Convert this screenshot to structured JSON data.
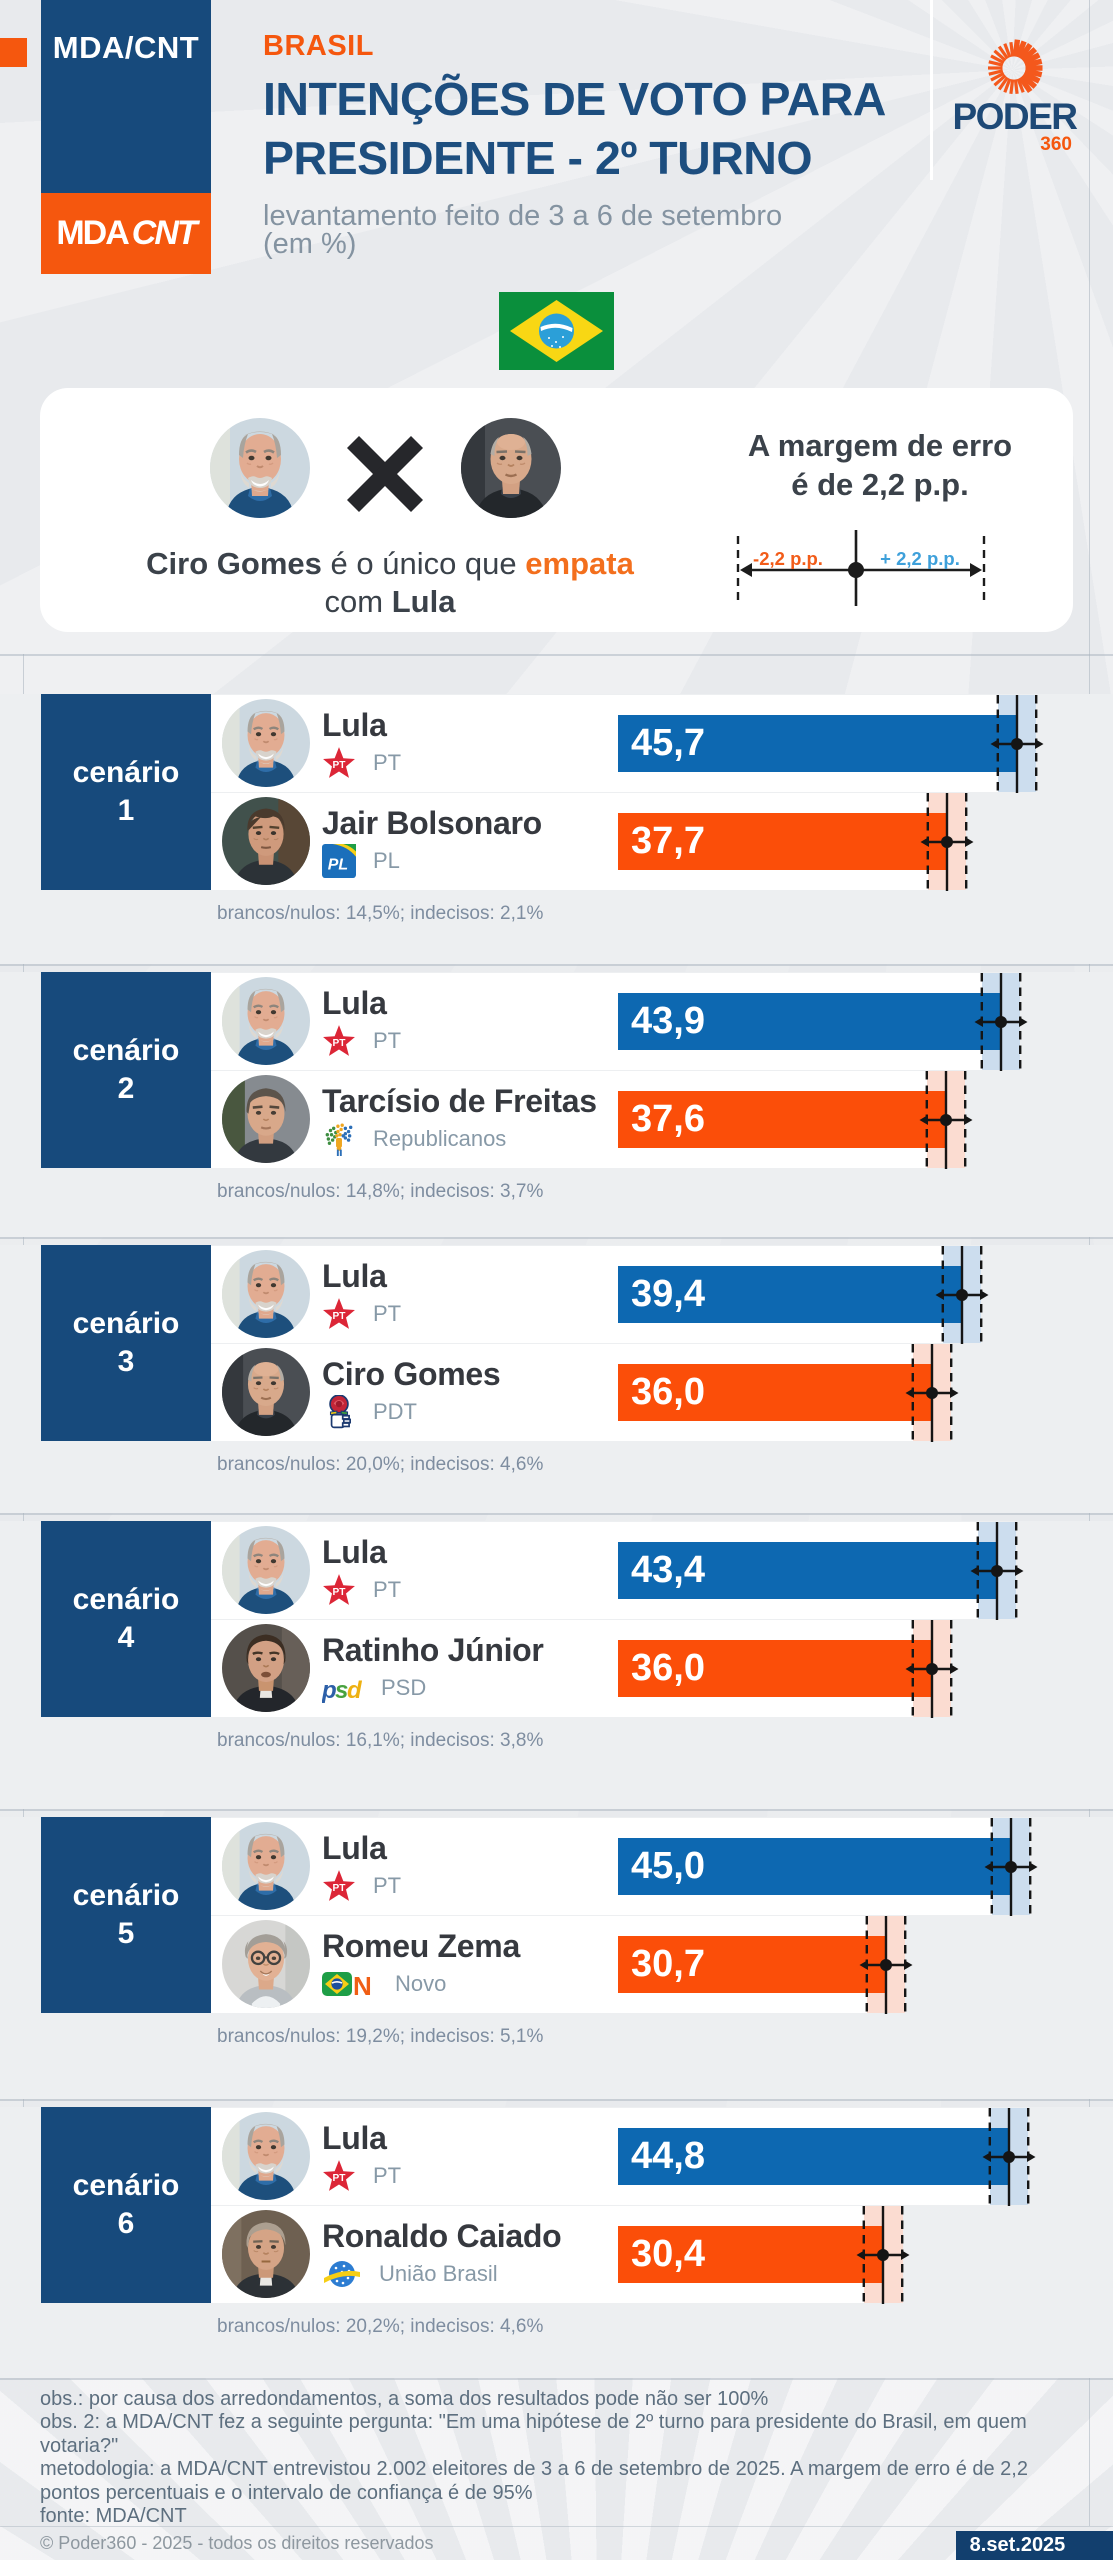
{
  "header": {
    "badge_label": "MDA/CNT",
    "badge_logo_mda": "MDA",
    "badge_logo_cnt": "CNT",
    "kicker": "BRASIL",
    "title_line1": "INTENÇÕES DE VOTO PARA",
    "title_line2": "PRESIDENTE - 2º TURNO",
    "subtitle": "levantamento feito de 3 a 6 de setembro",
    "unit": "(em %)",
    "logo_word": "PODER",
    "logo_suffix": "360"
  },
  "highlight_card": {
    "caption_bold1": "Ciro Gomes",
    "caption_mid": " é o único que ",
    "caption_accent": "empata",
    "caption_line2_pre": "com ",
    "caption_line2_bold": "Lula",
    "margin_title_line1": "A margem de erro",
    "margin_title_line2": "é de 2,2 p.p.",
    "minus_label": "-2,2 p.p.",
    "plus_label": "+ 2,2 p.p."
  },
  "chart_data": {
    "type": "bar",
    "unit": "%",
    "margin_of_error_pp": 2.2,
    "x_axis": {
      "min": 0,
      "max": 50
    },
    "scenarios": [
      {
        "label_line1": "cenário",
        "label_line2": "1",
        "rows": [
          {
            "name": "Lula",
            "party": "PT",
            "party_icon": "pt-star-icon",
            "avatar": "avatar-lula",
            "value": 45.7,
            "value_label": "45,7",
            "color_key": "blue"
          },
          {
            "name": "Jair Bolsonaro",
            "party": "PL",
            "party_icon": "pl-icon",
            "avatar": "avatar-bolsonaro",
            "value": 37.7,
            "value_label": "37,7",
            "color_key": "orange"
          }
        ],
        "note": "brancos/nulos: 14,5%; indecisos: 2,1%"
      },
      {
        "label_line1": "cenário",
        "label_line2": "2",
        "rows": [
          {
            "name": "Lula",
            "party": "PT",
            "party_icon": "pt-star-icon",
            "avatar": "avatar-lula",
            "value": 43.9,
            "value_label": "43,9",
            "color_key": "blue"
          },
          {
            "name": "Tarcísio de Freitas",
            "party": "Republicanos",
            "party_icon": "republicanos-icon",
            "avatar": "avatar-tarcisio",
            "value": 37.6,
            "value_label": "37,6",
            "color_key": "orange"
          }
        ],
        "note": "brancos/nulos: 14,8%; indecisos: 3,7%"
      },
      {
        "label_line1": "cenário",
        "label_line2": "3",
        "rows": [
          {
            "name": "Lula",
            "party": "PT",
            "party_icon": "pt-star-icon",
            "avatar": "avatar-lula",
            "value": 39.4,
            "value_label": "39,4",
            "color_key": "blue"
          },
          {
            "name": "Ciro Gomes",
            "party": "PDT",
            "party_icon": "pdt-icon",
            "avatar": "avatar-ciro",
            "value": 36.0,
            "value_label": "36,0",
            "color_key": "orange"
          }
        ],
        "note": "brancos/nulos: 20,0%; indecisos: 4,6%"
      },
      {
        "label_line1": "cenário",
        "label_line2": "4",
        "rows": [
          {
            "name": "Lula",
            "party": "PT",
            "party_icon": "pt-star-icon",
            "avatar": "avatar-lula",
            "value": 43.4,
            "value_label": "43,4",
            "color_key": "blue"
          },
          {
            "name": "Ratinho Júnior",
            "party": "PSD",
            "party_icon": "psd-icon",
            "avatar": "avatar-ratinho",
            "value": 36.0,
            "value_label": "36,0",
            "color_key": "orange"
          }
        ],
        "note": "brancos/nulos: 16,1%; indecisos: 3,8%"
      },
      {
        "label_line1": "cenário",
        "label_line2": "5",
        "rows": [
          {
            "name": "Lula",
            "party": "PT",
            "party_icon": "pt-star-icon",
            "avatar": "avatar-lula",
            "value": 45.0,
            "value_label": "45,0",
            "color_key": "blue"
          },
          {
            "name": "Romeu Zema",
            "party": "Novo",
            "party_icon": "novo-icon",
            "avatar": "avatar-zema",
            "value": 30.7,
            "value_label": "30,7",
            "color_key": "orange"
          }
        ],
        "note": "brancos/nulos: 19,2%; indecisos: 5,1%"
      },
      {
        "label_line1": "cenário",
        "label_line2": "6",
        "rows": [
          {
            "name": "Lula",
            "party": "PT",
            "party_icon": "pt-star-icon",
            "avatar": "avatar-lula",
            "value": 44.8,
            "value_label": "44,8",
            "color_key": "blue"
          },
          {
            "name": "Ronaldo Caiado",
            "party": "União Brasil",
            "party_icon": "uniao-icon",
            "avatar": "avatar-caiado",
            "value": 30.4,
            "value_label": "30,4",
            "color_key": "orange"
          }
        ],
        "note": "brancos/nulos: 20,2%; indecisos: 4,6%"
      }
    ]
  },
  "footer": {
    "lines": [
      "obs.: por causa dos arredondamentos, a soma dos resultados pode não ser 100%",
      "obs. 2: a MDA/CNT fez a seguinte pergunta: \"Em uma hipótese de 2º turno para presidente do Brasil, em quem",
      "votaria?\"",
      "metodologia: a MDA/CNT entrevistou 2.002 eleitores de 3 a 6 de setembro de 2025. A margem de erro é de 2,2",
      "pontos percentuais e o intervalo de confiança é de 95%",
      "fonte: MDA/CNT"
    ],
    "copyright": "© Poder360 - 2025 - todos os direitos reservados",
    "date_badge": "8.set.2025"
  },
  "colors": {
    "navy": "#174a7c",
    "orange": "#f5570e",
    "bar_blue": "#0d68b1",
    "bar_orange": "#fb4e09",
    "band_blue": "#ccddee",
    "band_orange": "#fbdcd1",
    "page_bg": "#e8eaed",
    "accent_text": "#f36f1d",
    "minus_label_color": "#f25c19",
    "plus_label_color": "#3ea0da"
  }
}
